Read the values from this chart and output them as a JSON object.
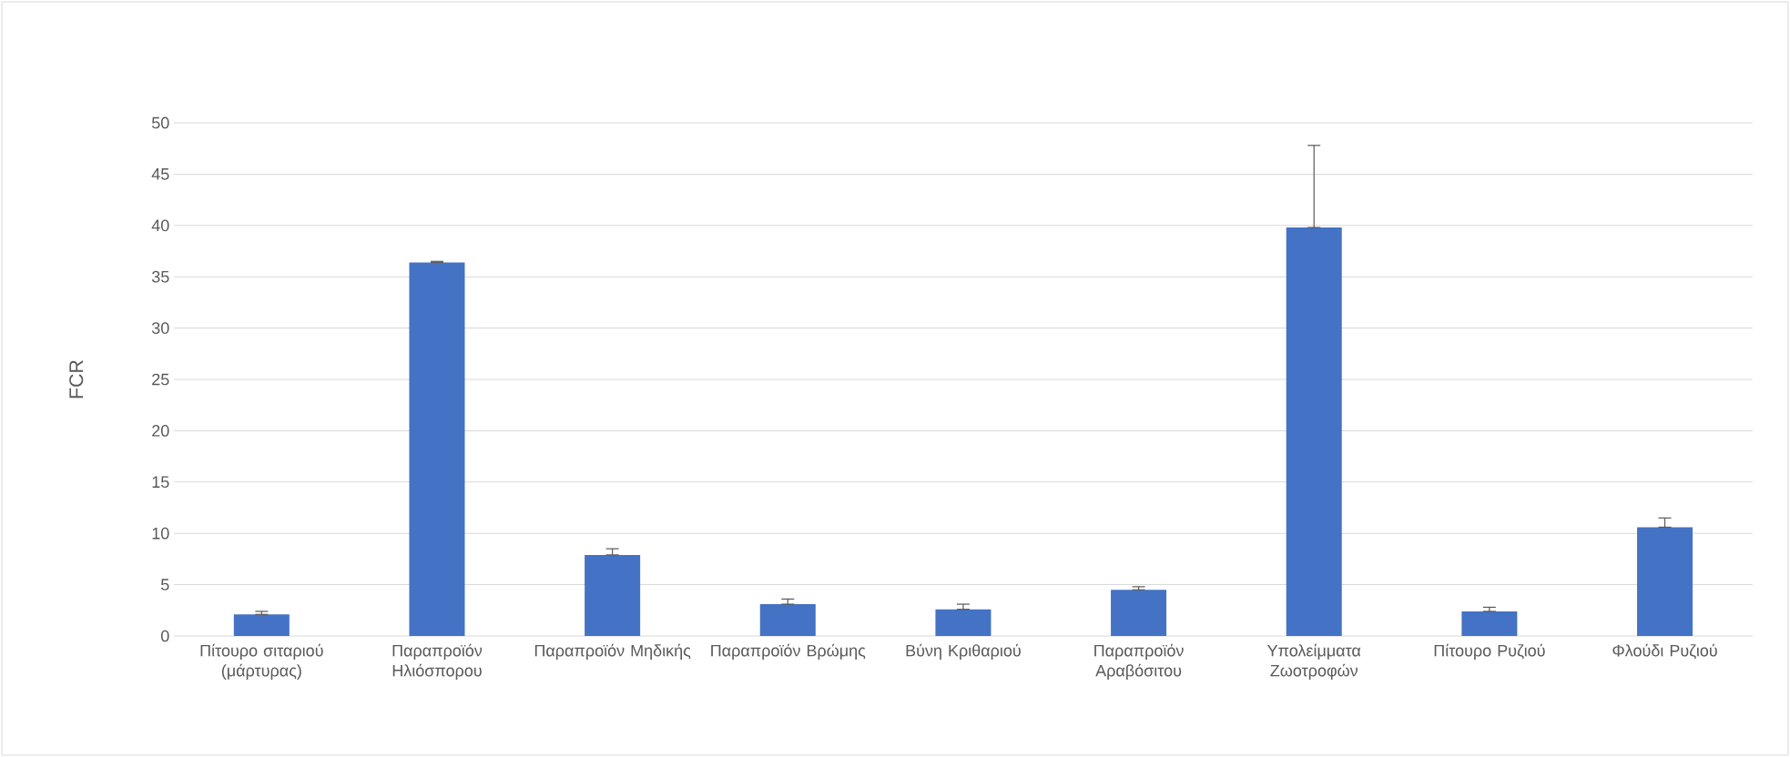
{
  "chart_data": {
    "type": "bar",
    "ylabel": "FCR",
    "categories": [
      "Πίτουρο σιταριού (μάρτυρας)",
      "Παραπροϊόν Ηλιόσπορου",
      "Παραπροϊόν Μηδικής",
      "Παραπροϊόν Βρώμης",
      "Βύνη Κριθαριού",
      "Παραπροϊόν Αραβόσιτου",
      "Υπολείμματα Ζωοτροφών",
      "Πίτουρο Ρυζιού",
      "Φλούδι Ρυζιού"
    ],
    "values": [
      2.1,
      36.4,
      7.9,
      3.1,
      2.6,
      4.5,
      39.8,
      2.4,
      10.6
    ],
    "errors": [
      [
        2.1,
        2.4
      ],
      [
        36.4,
        36.5
      ],
      [
        7.9,
        8.5
      ],
      [
        3.1,
        3.6
      ],
      [
        2.6,
        3.1
      ],
      [
        4.5,
        4.8
      ],
      [
        39.8,
        47.8
      ],
      [
        2.4,
        2.8
      ],
      [
        10.6,
        11.5
      ]
    ],
    "color": "#4472c4",
    "ylim": [
      0,
      50
    ],
    "yticks": [
      0,
      5,
      10,
      15,
      20,
      25,
      30,
      35,
      40,
      45,
      50
    ],
    "grid": "y"
  }
}
